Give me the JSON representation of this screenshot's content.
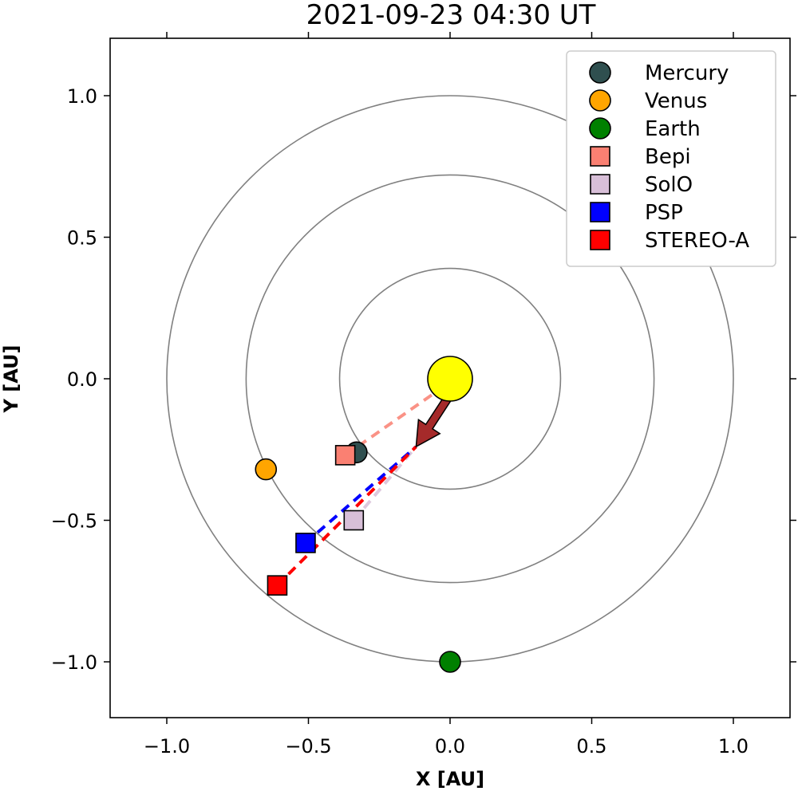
{
  "chart_data": {
    "type": "scatter",
    "title": "2021-09-23 04:30 UT",
    "xlabel": "X [AU]",
    "ylabel": "Y [AU]",
    "xlim": [
      -1.2,
      1.2
    ],
    "ylim": [
      -1.2,
      1.2
    ],
    "xticks": [
      -1.0,
      -0.5,
      0.0,
      0.5,
      1.0
    ],
    "yticks": [
      -1.0,
      -0.5,
      0.0,
      0.5,
      1.0
    ],
    "xtick_labels": [
      "−1.0",
      "−0.5",
      "0.0",
      "0.5",
      "1.0"
    ],
    "ytick_labels": [
      "−1.0",
      "−0.5",
      "0.0",
      "0.5",
      "1.0"
    ],
    "grid": false,
    "legend_position": "top-right",
    "orbits_radii_au": [
      0.39,
      0.72,
      1.0
    ],
    "sun": {
      "x": 0.0,
      "y": 0.0,
      "color": "#ffff00"
    },
    "arrow": {
      "from": [
        0.0,
        0.0
      ],
      "to": [
        -0.12,
        -0.24
      ],
      "color": "#a52a2a"
    },
    "series": [
      {
        "name": "Mercury",
        "marker": "circle",
        "color": "#2f4f4f",
        "x": -0.33,
        "y": -0.26
      },
      {
        "name": "Venus",
        "marker": "circle",
        "color": "#ffa500",
        "x": -0.65,
        "y": -0.32
      },
      {
        "name": "Earth",
        "marker": "circle",
        "color": "#008000",
        "x": 0.0,
        "y": -1.0
      },
      {
        "name": "Bepi",
        "marker": "square",
        "color": "#fa8072",
        "x": -0.37,
        "y": -0.27
      },
      {
        "name": "SolO",
        "marker": "square",
        "color": "#d8bfd8",
        "x": -0.34,
        "y": -0.5
      },
      {
        "name": "PSP",
        "marker": "square",
        "color": "#0000ff",
        "x": -0.51,
        "y": -0.58
      },
      {
        "name": "STEREO-A",
        "marker": "square",
        "color": "#ff0000",
        "x": -0.61,
        "y": -0.73
      }
    ]
  }
}
